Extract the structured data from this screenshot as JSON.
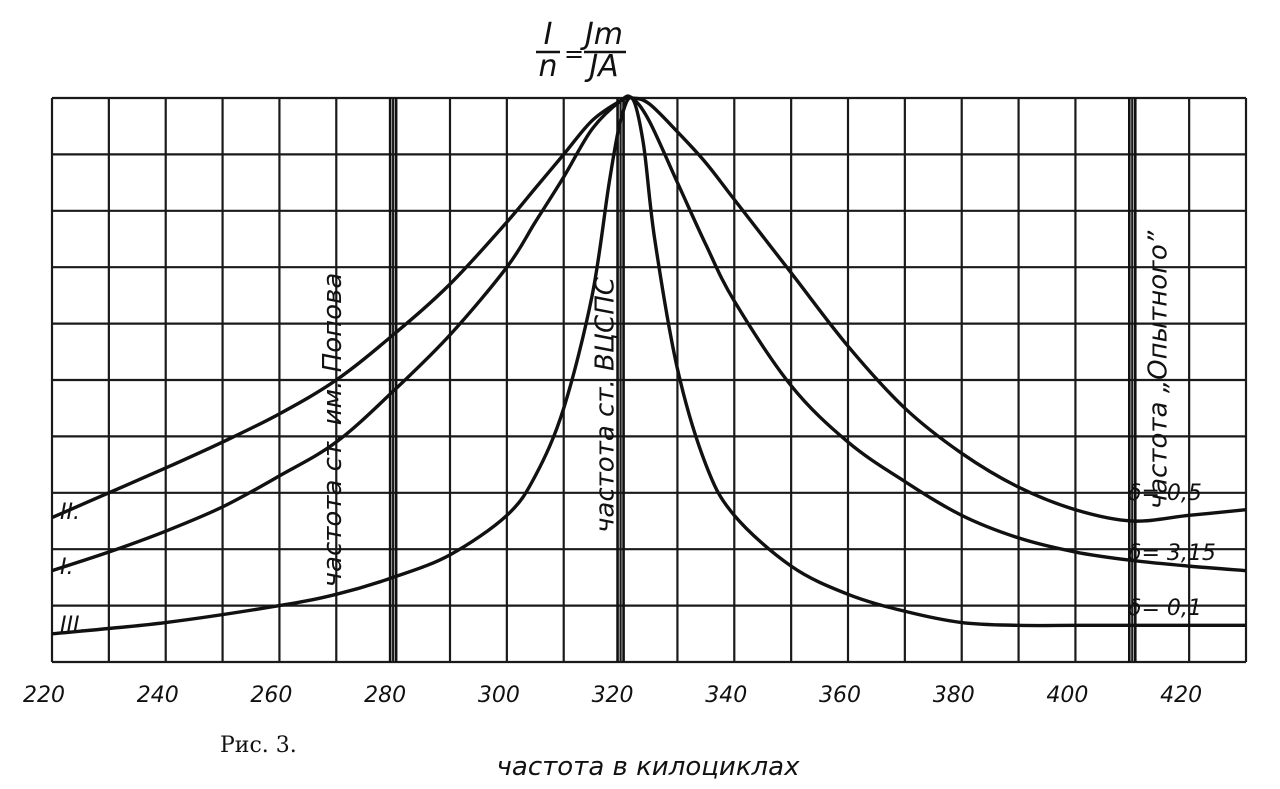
{
  "chart_data": {
    "type": "line",
    "title": {
      "num": "I",
      "den": "n",
      "eq": "=",
      "rnum": "Jm",
      "rden": "JA"
    },
    "xlabel": "частота в килоциклах",
    "caption": "Рис. 3.",
    "x_ticks": [
      220,
      240,
      260,
      280,
      300,
      320,
      340,
      360,
      380,
      400,
      420
    ],
    "xlim": [
      220,
      430
    ],
    "ylim": [
      0,
      1
    ],
    "grid": true,
    "vlines": [
      {
        "x": 280,
        "label": "частота ст. им. Попова"
      },
      {
        "x": 320,
        "label": "частота ст. ВЦСПС"
      },
      {
        "x": 410,
        "label": "частота „Опытного”"
      }
    ],
    "series": [
      {
        "name": "II.",
        "annotation": "δ= 0,5",
        "x": [
          220,
          230,
          240,
          250,
          260,
          270,
          280,
          290,
          300,
          305,
          310,
          315,
          320,
          322,
          325,
          330,
          335,
          340,
          350,
          360,
          370,
          380,
          390,
          400,
          410,
          420,
          430
        ],
        "y": [
          0.256,
          0.3,
          0.344,
          0.39,
          0.44,
          0.5,
          0.58,
          0.67,
          0.78,
          0.84,
          0.9,
          0.96,
          0.995,
          1.0,
          0.99,
          0.94,
          0.885,
          0.82,
          0.69,
          0.56,
          0.45,
          0.37,
          0.31,
          0.27,
          0.25,
          0.26,
          0.27
        ]
      },
      {
        "name": "I.",
        "annotation": "δ= 3,15",
        "x": [
          220,
          230,
          240,
          250,
          260,
          270,
          280,
          290,
          300,
          305,
          310,
          315,
          320,
          322,
          325,
          330,
          335,
          340,
          350,
          360,
          370,
          380,
          390,
          400,
          410,
          420,
          430
        ],
        "y": [
          0.162,
          0.195,
          0.232,
          0.275,
          0.33,
          0.39,
          0.48,
          0.58,
          0.7,
          0.78,
          0.86,
          0.945,
          0.995,
          1.0,
          0.96,
          0.85,
          0.74,
          0.64,
          0.49,
          0.39,
          0.32,
          0.26,
          0.22,
          0.195,
          0.18,
          0.17,
          0.162
        ]
      },
      {
        "name": "III.",
        "annotation": "δ= 0,1",
        "x": [
          220,
          240,
          260,
          270,
          280,
          290,
          300,
          305,
          310,
          315,
          318,
          320,
          322,
          324,
          326,
          330,
          335,
          340,
          350,
          360,
          370,
          380,
          390,
          400,
          410,
          420,
          430
        ],
        "y": [
          0.05,
          0.07,
          0.1,
          0.12,
          0.15,
          0.19,
          0.26,
          0.33,
          0.45,
          0.65,
          0.85,
          0.96,
          1.0,
          0.92,
          0.75,
          0.52,
          0.35,
          0.26,
          0.17,
          0.12,
          0.09,
          0.07,
          0.065,
          0.065,
          0.065,
          0.065,
          0.065
        ]
      }
    ]
  }
}
